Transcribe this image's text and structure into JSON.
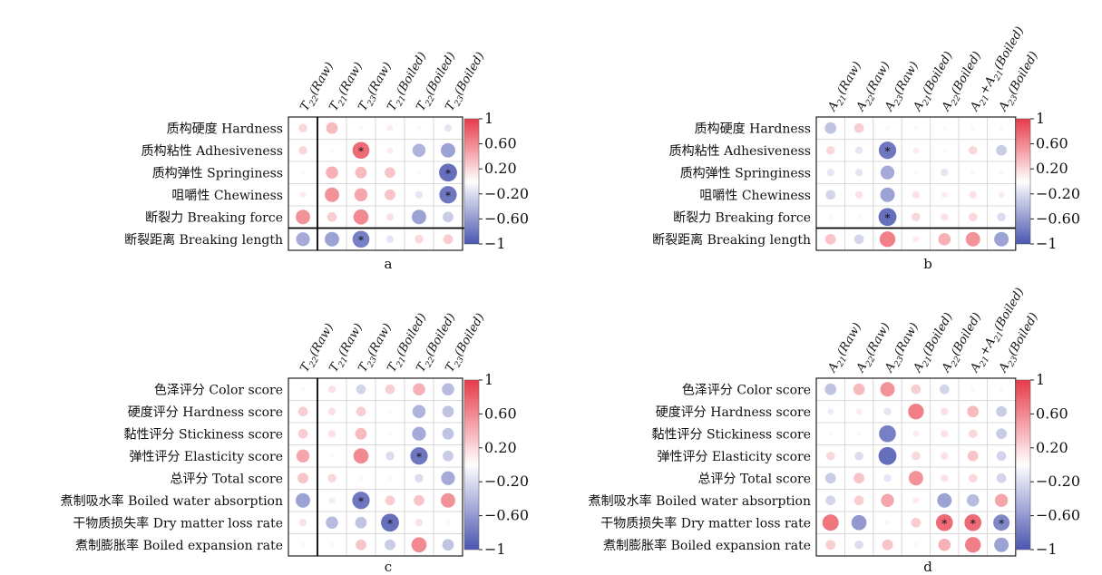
{
  "chart_data": [
    {
      "type": "heatmap",
      "panel_label": "a",
      "row_labels": [
        "质构硬度 Hardness",
        "质构粘性 Adhesiveness",
        "质构弹性 Springiness",
        "咀嚼性 Chewiness",
        "断裂力 Breaking force",
        "断裂距离 Breaking length"
      ],
      "col_labels": [
        {
          "base": "T",
          "sub": "22",
          "suffix": "(Raw)"
        },
        {
          "base": "T",
          "sub": "21",
          "suffix": "(Raw)"
        },
        {
          "base": "T",
          "sub": "23",
          "suffix": "(Raw)"
        },
        {
          "base": "T",
          "sub": "21",
          "suffix": "(Boiled)"
        },
        {
          "base": "T",
          "sub": "22",
          "suffix": "(Boiled)"
        },
        {
          "base": "T",
          "sub": "23",
          "suffix": "(Boiled)"
        }
      ],
      "values": [
        [
          0.2,
          0.35,
          0.05,
          0.1,
          0.05,
          -0.15
        ],
        [
          0.2,
          0.05,
          0.75,
          0.1,
          -0.45,
          -0.55
        ],
        [
          0.05,
          0.4,
          0.35,
          0.3,
          0.05,
          -0.85
        ],
        [
          0.1,
          0.55,
          0.45,
          0.3,
          -0.15,
          -0.8
        ],
        [
          0.55,
          0.25,
          0.6,
          0.15,
          -0.55,
          -0.3
        ],
        [
          -0.5,
          -0.55,
          -0.75,
          -0.15,
          0.2,
          0.25
        ]
      ],
      "significant": [
        [
          1,
          2
        ],
        [
          2,
          5
        ],
        [
          3,
          5
        ],
        [
          5,
          2
        ]
      ],
      "colorbar_ticks": [
        "1",
        "0.60",
        "0.20",
        "−0.20",
        "−0.60",
        "−1"
      ],
      "colors": {
        "positive": "#e83a48",
        "negative": "#4a55b0",
        "neutral": "#ffffff"
      }
    },
    {
      "type": "heatmap",
      "panel_label": "b",
      "row_labels": [
        "质构硬度 Hardness",
        "质构粘性 Adhesiveness",
        "质构弹性 Springiness",
        "咀嚼性 Chewiness",
        "断裂力 Breaking force",
        "断裂距离 Breaking length"
      ],
      "col_labels": [
        {
          "base": "A",
          "sub": "21",
          "suffix": "(Raw)"
        },
        {
          "base": "A",
          "sub": "22",
          "suffix": "(Raw)"
        },
        {
          "base": "A",
          "sub": "23",
          "suffix": "(Raw)"
        },
        {
          "base": "A",
          "sub": "21",
          "suffix": "(Boiled)"
        },
        {
          "base": "A",
          "sub": "22",
          "suffix": "(Boiled)"
        },
        {
          "base": "A",
          "sub": "21",
          "suffix": "+A",
          "sub2": "21",
          "suffix2": "(Boiled)"
        },
        {
          "base": "A",
          "sub": "23",
          "suffix": "(Boiled)"
        }
      ],
      "values": [
        [
          -0.35,
          0.25,
          0.05,
          0.05,
          0.05,
          0.05,
          0.05
        ],
        [
          0.2,
          -0.15,
          -0.8,
          0.1,
          0.05,
          0.2,
          -0.3
        ],
        [
          -0.15,
          -0.15,
          -0.5,
          0.05,
          -0.15,
          -0.05,
          0.05
        ],
        [
          -0.25,
          0.15,
          -0.55,
          0.15,
          0.1,
          0.15,
          0.1
        ],
        [
          0.05,
          0.05,
          -0.85,
          0.2,
          0.15,
          0.2,
          -0.2
        ],
        [
          0.3,
          -0.25,
          0.65,
          0.1,
          0.4,
          0.55,
          -0.55
        ]
      ],
      "significant": [
        [
          1,
          2
        ],
        [
          4,
          2
        ]
      ],
      "colorbar_ticks": [
        "1",
        "0.60",
        "0.20",
        "−0.20",
        "−0.60",
        "−1"
      ],
      "colors": {
        "positive": "#e83a48",
        "negative": "#4a55b0",
        "neutral": "#ffffff"
      }
    },
    {
      "type": "heatmap",
      "panel_label": "c",
      "row_labels": [
        "色泽评分 Color score",
        "硬度评分 Hardness score",
        "黏性评分 Stickiness score",
        "弹性评分 Elasticity score",
        "总评分 Total score",
        "煮制吸水率 Boiled water absorption",
        "干物质损失率 Dry matter loss rate",
        "煮制膨胀率 Boiled expansion rate"
      ],
      "col_labels": [
        {
          "base": "T",
          "sub": "22",
          "suffix": "(Raw)"
        },
        {
          "base": "T",
          "sub": "21",
          "suffix": "(Raw)"
        },
        {
          "base": "T",
          "sub": "23",
          "suffix": "(Raw)"
        },
        {
          "base": "T",
          "sub": "21",
          "suffix": "(Boiled)"
        },
        {
          "base": "T",
          "sub": "22",
          "suffix": "(Boiled)"
        },
        {
          "base": "T",
          "sub": "23",
          "suffix": "(Boiled)"
        }
      ],
      "values": [
        [
          0.05,
          0.15,
          -0.25,
          0.25,
          0.4,
          -0.4
        ],
        [
          0.25,
          0.15,
          0.25,
          0.05,
          -0.45,
          -0.35
        ],
        [
          0.25,
          0.15,
          0.35,
          0.05,
          -0.5,
          -0.35
        ],
        [
          0.45,
          0.05,
          0.6,
          -0.2,
          -0.8,
          -0.3
        ],
        [
          0.3,
          0.2,
          0.05,
          0.05,
          -0.2,
          -0.5
        ],
        [
          -0.55,
          -0.1,
          -0.8,
          0.25,
          0.3,
          0.55
        ],
        [
          0.15,
          -0.4,
          -0.35,
          -0.85,
          0.15,
          0.05
        ],
        [
          0.05,
          0.05,
          0.3,
          -0.3,
          0.6,
          -0.35
        ]
      ],
      "significant": [
        [
          3,
          4
        ],
        [
          5,
          2
        ],
        [
          6,
          3
        ]
      ],
      "colorbar_ticks": [
        "1",
        "0.60",
        "0.20",
        "−0.20",
        "−0.60",
        "−1"
      ],
      "colors": {
        "positive": "#e83a48",
        "negative": "#4a55b0",
        "neutral": "#ffffff"
      }
    },
    {
      "type": "heatmap",
      "panel_label": "d",
      "row_labels": [
        "色泽评分 Color score",
        "硬度评分 Hardness score",
        "黏性评分 Stickiness score",
        "弹性评分 Elasticity score",
        "总评分 Total score",
        "煮制吸水率 Boiled water absorption",
        "干物质损失率 Dry matter loss rate",
        "煮制膨胀率 Boiled expansion rate"
      ],
      "col_labels": [
        {
          "base": "A",
          "sub": "21",
          "suffix": "(Raw)"
        },
        {
          "base": "A",
          "sub": "22",
          "suffix": "(Raw)"
        },
        {
          "base": "A",
          "sub": "23",
          "suffix": "(Raw)"
        },
        {
          "base": "A",
          "sub": "21",
          "suffix": "(Boiled)"
        },
        {
          "base": "A",
          "sub": "22",
          "suffix": "(Boiled)"
        },
        {
          "base": "A",
          "sub": "21",
          "suffix": "+A",
          "sub2": "21",
          "suffix2": "(Boiled)"
        },
        {
          "base": "A",
          "sub": "23",
          "suffix": "(Boiled)"
        }
      ],
      "values": [
        [
          -0.35,
          0.35,
          0.55,
          0.25,
          -0.25,
          0.05,
          0.05
        ],
        [
          -0.1,
          0.1,
          -0.15,
          0.65,
          0.15,
          0.35,
          -0.3
        ],
        [
          0.05,
          0.05,
          -0.75,
          0.1,
          0.15,
          0.2,
          -0.3
        ],
        [
          0.2,
          -0.2,
          -0.85,
          0.2,
          0.15,
          0.3,
          -0.25
        ],
        [
          -0.3,
          0.3,
          -0.15,
          0.55,
          0.15,
          0.2,
          -0.25
        ],
        [
          -0.25,
          0.25,
          0.45,
          0.1,
          -0.55,
          -0.4,
          0.45
        ],
        [
          0.7,
          -0.6,
          -0.05,
          0.25,
          0.75,
          0.75,
          -0.7
        ],
        [
          0.25,
          -0.2,
          0.3,
          0.05,
          0.4,
          0.65,
          -0.55
        ]
      ],
      "significant": [
        [
          6,
          4
        ],
        [
          6,
          5
        ],
        [
          6,
          6
        ]
      ],
      "colorbar_ticks": [
        "1",
        "0.60",
        "0.20",
        "−0.20",
        "−0.60",
        "−1"
      ],
      "colors": {
        "positive": "#e83a48",
        "negative": "#4a55b0",
        "neutral": "#ffffff"
      }
    }
  ],
  "significance_marker": "*"
}
